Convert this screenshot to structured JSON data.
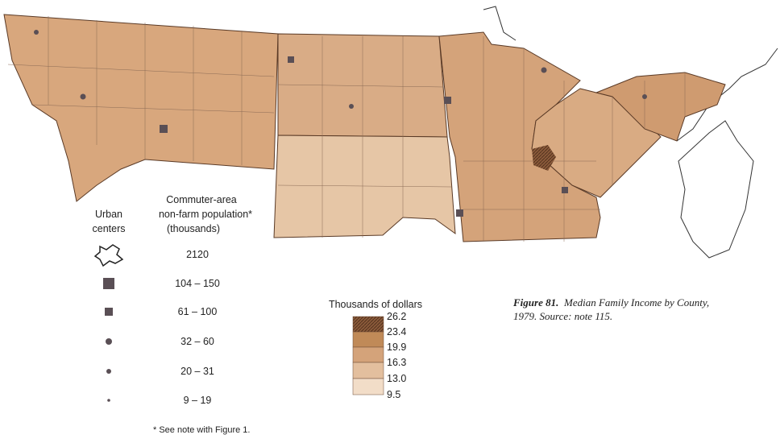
{
  "urban_legend": {
    "title_lines": [
      "Urban",
      "centers"
    ],
    "header_lines": [
      "Commuter-area",
      "non-farm population*",
      "(thousands)"
    ],
    "items": [
      "2120",
      "104 – 150",
      "61 – 100",
      "32 – 60",
      "20 – 31",
      "9 – 19"
    ]
  },
  "income_legend": {
    "title": "Thousands of dollars",
    "breaks": [
      "26.2",
      "23.4",
      "19.9",
      "16.3",
      "13.0",
      "9.5"
    ]
  },
  "caption": {
    "figure": "Figure 81.",
    "text_lines": [
      "Median Family Income by County,",
      "1979. Source: note 115."
    ]
  },
  "footnote": "* See note with Figure 1."
}
